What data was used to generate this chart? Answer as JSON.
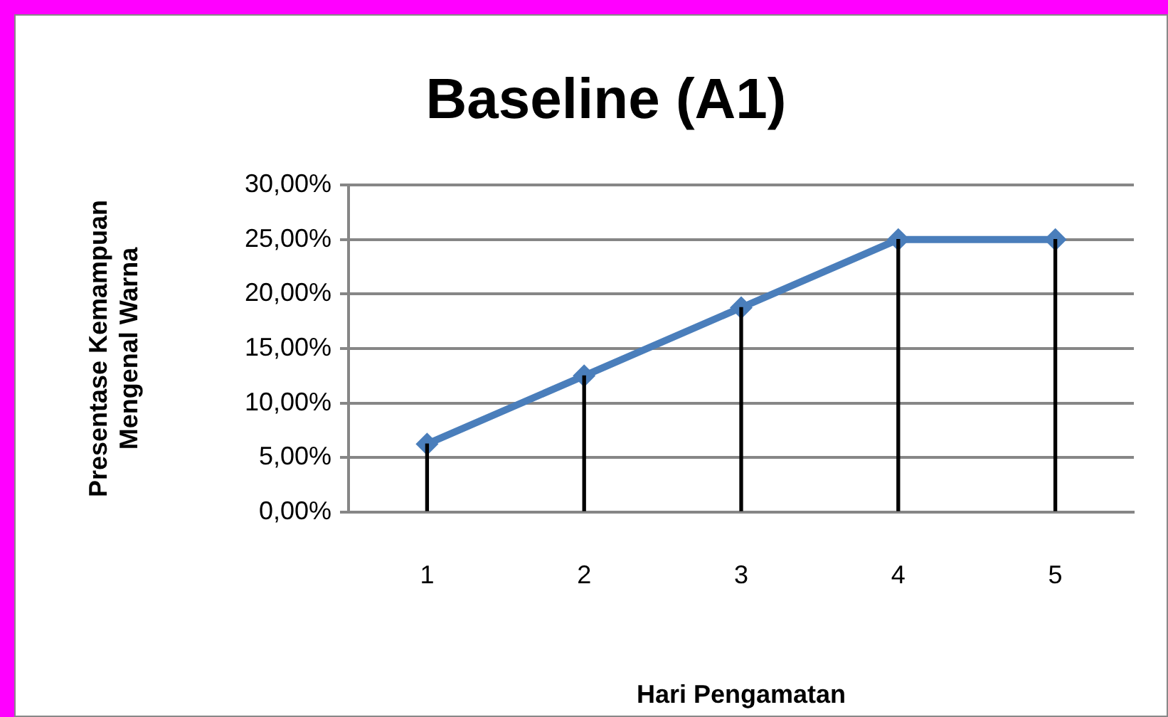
{
  "chart_data": {
    "type": "line",
    "title": "Baseline (A1)",
    "xlabel": "Hari Pengamatan",
    "ylabel": "Presentase Kemampuan Mengenal Warna",
    "categories": [
      "1",
      "2",
      "3",
      "4",
      "5"
    ],
    "series": [
      {
        "color": "#4a7ebb",
        "values": [
          6.25,
          12.5,
          18.75,
          25,
          25
        ]
      },
      {
        "type": "bar",
        "color": "#000000",
        "values": [
          6.25,
          12.5,
          18.75,
          25,
          25
        ]
      }
    ],
    "ylim": [
      0,
      30
    ],
    "yticks": [
      {
        "value": 0,
        "label": "0,00%"
      },
      {
        "value": 5,
        "label": "5,00%"
      },
      {
        "value": 10,
        "label": "10,00%"
      },
      {
        "value": 15,
        "label": "15,00%"
      },
      {
        "value": 20,
        "label": "20,00%"
      },
      {
        "value": 25,
        "label": "25,00%"
      },
      {
        "value": 30,
        "label": "30,00%"
      }
    ],
    "grid": "y",
    "legend": false,
    "marker": "diamond",
    "line_style": "solid"
  }
}
